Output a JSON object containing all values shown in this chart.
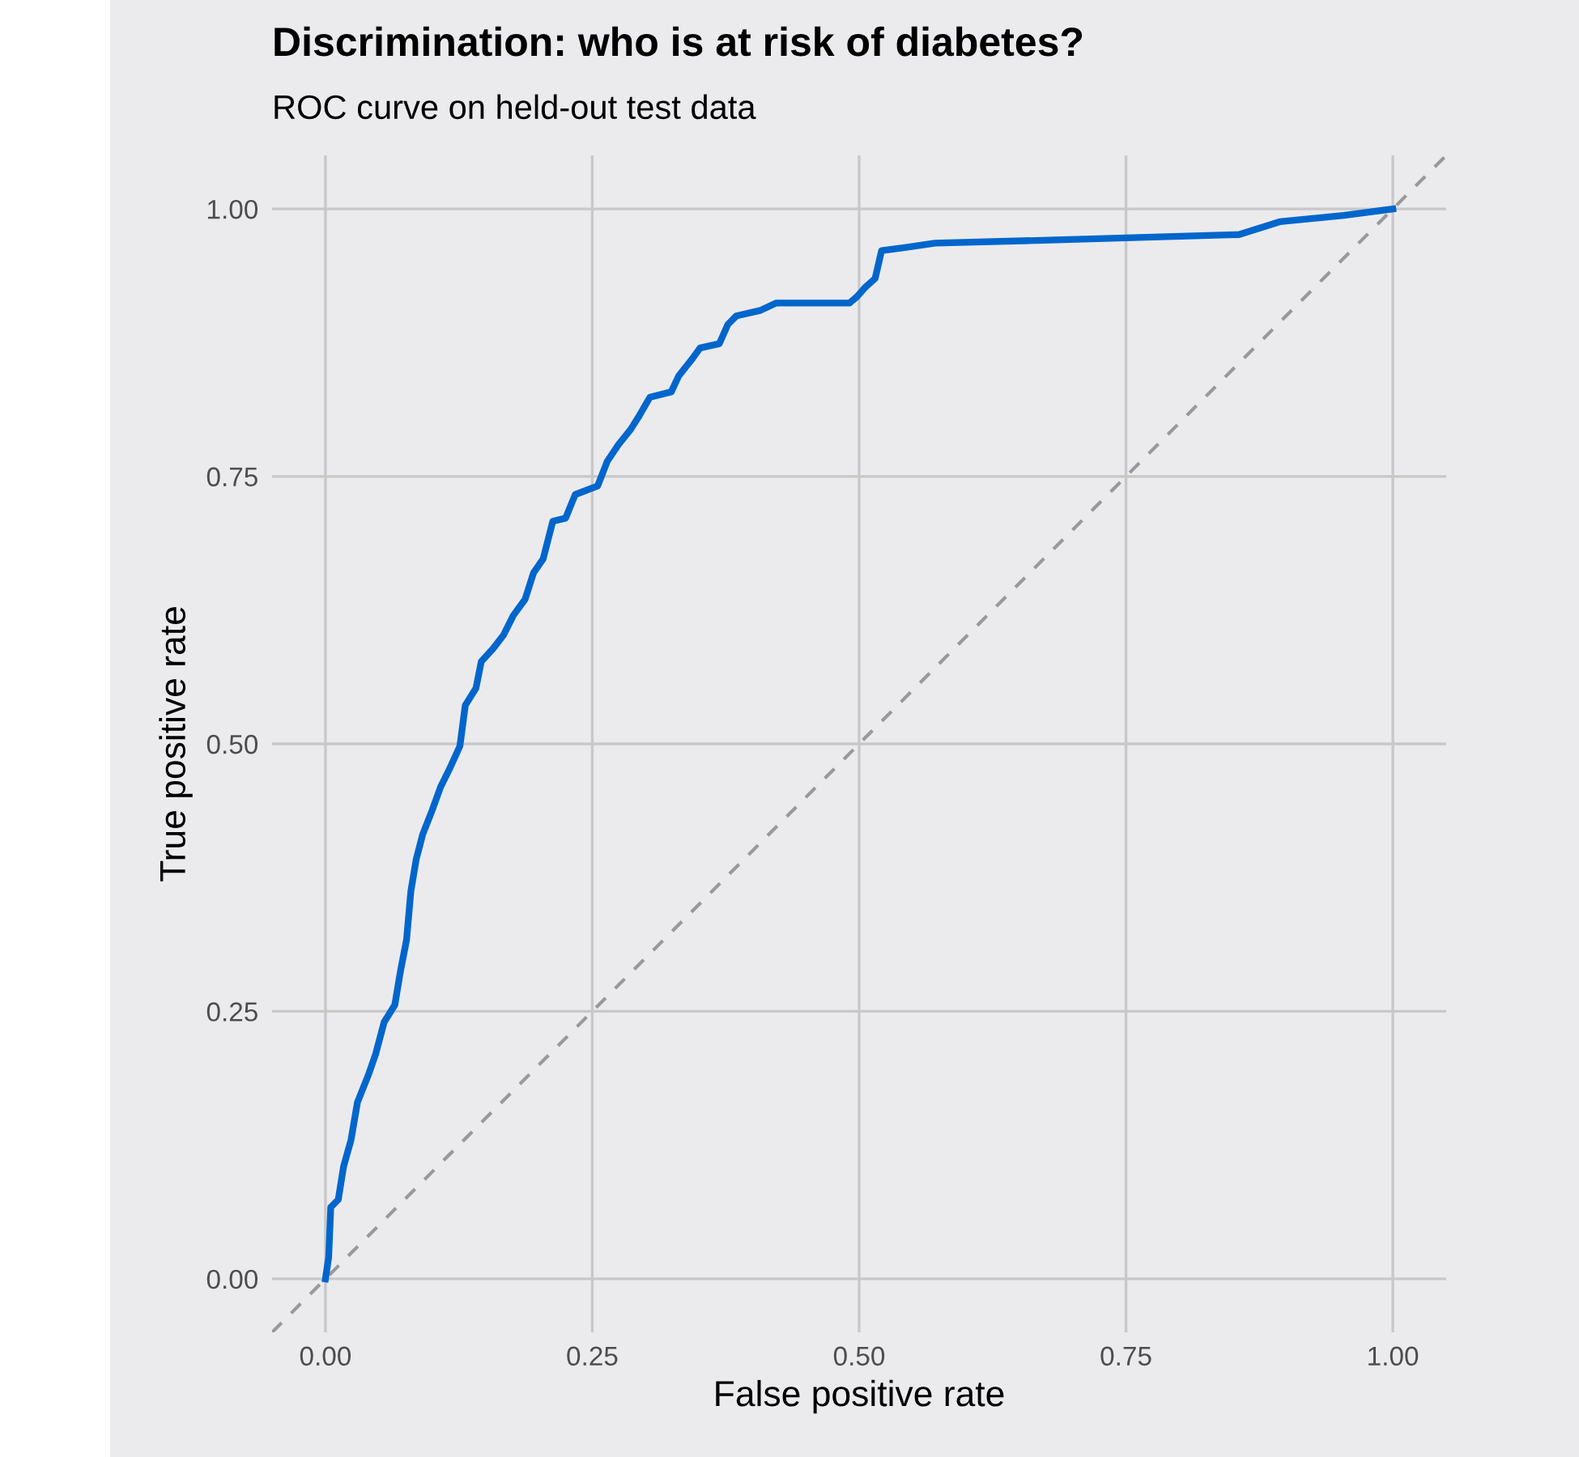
{
  "chart_data": {
    "type": "line",
    "title": "Discrimination: who is at risk of diabetes?",
    "subtitle": "ROC curve on held-out test data",
    "xlabel": "False positive rate",
    "ylabel": "True positive rate",
    "xlim": [
      -0.05,
      1.05
    ],
    "ylim": [
      -0.05,
      1.05
    ],
    "xticks": [
      {
        "value": 0,
        "label": "0.00"
      },
      {
        "value": 0.25,
        "label": "0.25"
      },
      {
        "value": 0.5,
        "label": "0.50"
      },
      {
        "value": 0.75,
        "label": "0.75"
      },
      {
        "value": 1,
        "label": "1.00"
      }
    ],
    "yticks": [
      {
        "value": 0,
        "label": "0.00"
      },
      {
        "value": 0.25,
        "label": "0.25"
      },
      {
        "value": 0.5,
        "label": "0.50"
      },
      {
        "value": 0.75,
        "label": "0.75"
      },
      {
        "value": 1,
        "label": "1.00"
      }
    ],
    "grid": true,
    "legend": false,
    "series": [
      {
        "color": "#999999",
        "line_style": "dashed",
        "x": [
          -0.05,
          1.05
        ],
        "values": [
          -0.05,
          1.05
        ]
      },
      {
        "color": "#0066cc",
        "line_style": "solid",
        "x": [
          0,
          0.003,
          0.005,
          0.012,
          0.017,
          0.024,
          0.03,
          0.04,
          0.047,
          0.055,
          0.065,
          0.07,
          0.076,
          0.08,
          0.085,
          0.091,
          0.1,
          0.108,
          0.116,
          0.126,
          0.131,
          0.141,
          0.146,
          0.157,
          0.167,
          0.176,
          0.187,
          0.195,
          0.204,
          0.213,
          0.225,
          0.234,
          0.255,
          0.264,
          0.274,
          0.286,
          0.293,
          0.304,
          0.324,
          0.331,
          0.343,
          0.351,
          0.369,
          0.377,
          0.385,
          0.407,
          0.422,
          0.491,
          0.498,
          0.506,
          0.515,
          0.521,
          0.544,
          0.571,
          0.685,
          0.856,
          0.894,
          0.954,
          1
        ],
        "values": [
          0,
          0.02,
          0.067,
          0.074,
          0.105,
          0.13,
          0.165,
          0.19,
          0.21,
          0.24,
          0.256,
          0.286,
          0.317,
          0.362,
          0.392,
          0.415,
          0.438,
          0.46,
          0.476,
          0.498,
          0.536,
          0.552,
          0.577,
          0.589,
          0.602,
          0.62,
          0.635,
          0.66,
          0.673,
          0.708,
          0.711,
          0.733,
          0.741,
          0.764,
          0.779,
          0.794,
          0.805,
          0.824,
          0.829,
          0.844,
          0.859,
          0.87,
          0.874,
          0.892,
          0.9,
          0.905,
          0.912,
          0.912,
          0.918,
          0.927,
          0.935,
          0.961,
          0.964,
          0.968,
          0.971,
          0.976,
          0.988,
          0.994,
          1
        ]
      }
    ]
  }
}
